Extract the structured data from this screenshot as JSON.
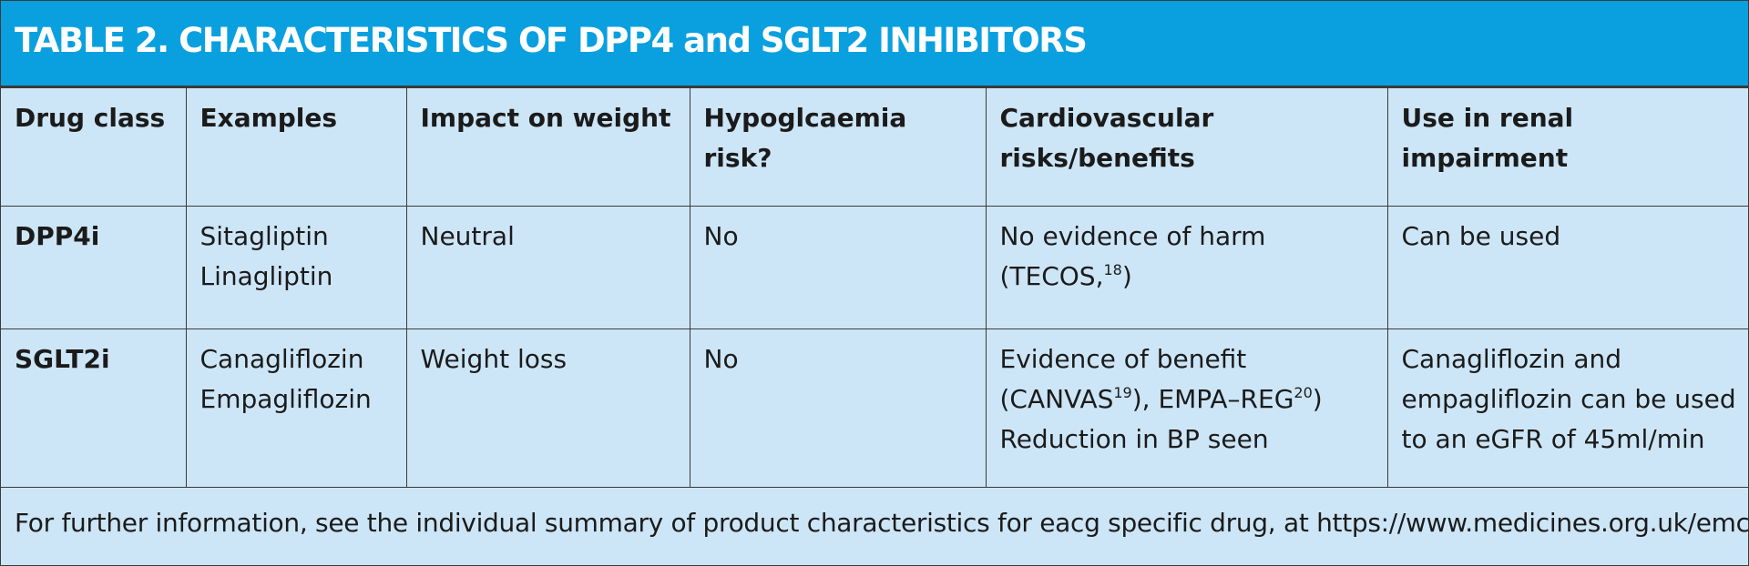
{
  "title": "TABLE 2. CHARACTERISTICS OF DPP4 and SGLT2 INHIBITORS",
  "headers": [
    "Drug class",
    "Examples",
    "Impact on weight",
    "Hypoglcaemia risk?",
    "Cardiovascular risks/benefits",
    "Use in renal impairment"
  ],
  "rows": [
    {
      "drug_class": "DPP4i",
      "examples": [
        "Sitagliptin",
        "Linagliptin"
      ],
      "weight": "Neutral",
      "hypo": "No",
      "cv": {
        "line1": "No evidence of harm",
        "line2_pre": "(TECOS,",
        "line2_ref": "18",
        "line2_post": ")"
      },
      "renal": "Can be used"
    },
    {
      "drug_class": "SGLT2i",
      "examples": [
        "Canagliflozin",
        "Empagliflozin"
      ],
      "weight": "Weight loss",
      "hypo": "No",
      "cv": {
        "line1": "Evidence of benefit",
        "line2_a": "(CANVAS",
        "line2_ref1": "19",
        "line2_b": "), EMPA–REG",
        "line2_ref2": "20",
        "line2_c": ")",
        "line3": "Reduction in BP seen"
      },
      "renal": [
        "Canagliflozin and",
        "empagliflozin can be used",
        "to an eGFR of 45ml/min"
      ]
    }
  ],
  "footer": "For further information, see the individual summary of product characteristics for eacg specific drug, at https://www.medicines.org.uk/emc",
  "colors": {
    "header_bar": "#0aa0df",
    "table_bg": "#cde6f7",
    "border": "#3a3a3a"
  }
}
